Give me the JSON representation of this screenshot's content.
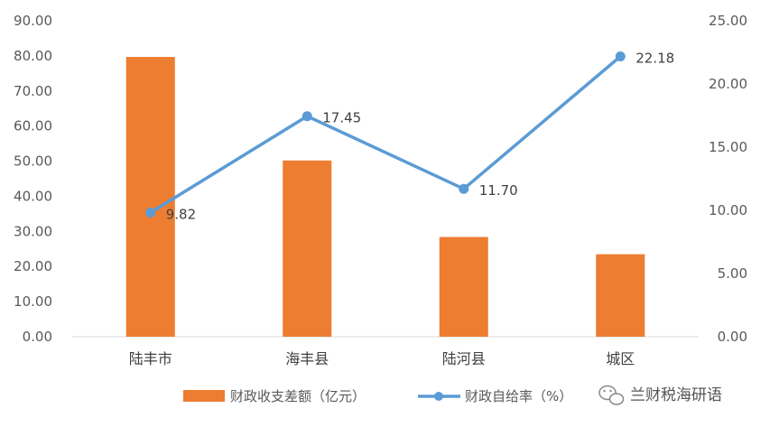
{
  "chart_data": {
    "type": "bar+line",
    "categories": [
      "陆丰市",
      "海丰县",
      "陆河县",
      "城区"
    ],
    "series": [
      {
        "name": "财政收支差额（亿元）",
        "type": "bar",
        "axis": "left",
        "color": "#ED7D31",
        "values": [
          79.7,
          50.2,
          28.4,
          23.5
        ]
      },
      {
        "name": "财政自给率（%）",
        "type": "line",
        "axis": "right",
        "color": "#5B9BD5",
        "values": [
          9.82,
          17.45,
          11.7,
          22.18
        ],
        "data_labels": [
          "9.82",
          "17.45",
          "11.70",
          "22.18"
        ]
      }
    ],
    "left_axis": {
      "min": 0,
      "max": 90,
      "step": 10,
      "tick_labels": [
        "0.00",
        "10.00",
        "20.00",
        "30.00",
        "40.00",
        "50.00",
        "60.00",
        "70.00",
        "80.00",
        "90.00"
      ]
    },
    "right_axis": {
      "min": 0,
      "max": 25,
      "step": 5,
      "tick_labels": [
        "0.00",
        "5.00",
        "10.00",
        "15.00",
        "20.00",
        "25.00"
      ]
    },
    "grid": false,
    "legend": "bottom"
  },
  "watermark": {
    "icon": "wechat-icon",
    "text": "兰财税海研语"
  }
}
